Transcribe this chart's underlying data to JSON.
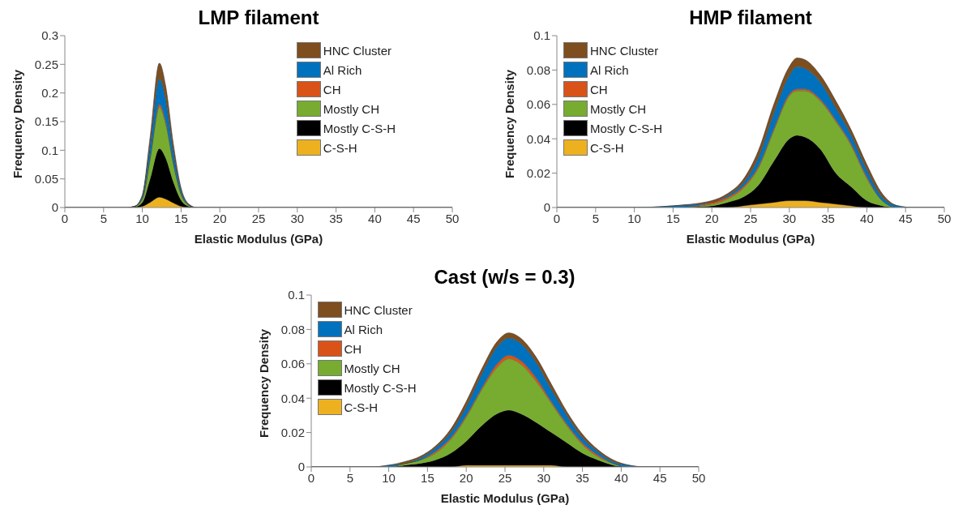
{
  "chart_data": [
    {
      "type": "area",
      "title": "LMP filament",
      "xlabel": "Elastic Modulus (GPa)",
      "ylabel": "Frequency Density",
      "stacked": true,
      "legend": "top right",
      "xlim": [
        0,
        50
      ],
      "xticks": [
        0,
        5,
        10,
        15,
        20,
        25,
        30,
        35,
        40,
        45,
        50
      ],
      "ylim": [
        0,
        0.3
      ],
      "yticks": [
        0,
        0.05,
        0.1,
        0.15,
        0.2,
        0.25,
        0.3
      ],
      "x": [
        0,
        7,
        8,
        9,
        10,
        11,
        12.2,
        13,
        14,
        15,
        16,
        17,
        50
      ],
      "series": [
        {
          "name": "C-S-H",
          "color": "#edb120",
          "values": [
            0,
            0,
            0,
            0,
            0.002,
            0.009,
            0.018,
            0.015,
            0.008,
            0.002,
            0,
            0,
            0
          ]
        },
        {
          "name": "Mostly C-S-H",
          "color": "#000000",
          "values": [
            0,
            0,
            0,
            0.001,
            0.007,
            0.041,
            0.085,
            0.072,
            0.037,
            0.011,
            0.002,
            0,
            0
          ]
        },
        {
          "name": "Mostly CH",
          "color": "#77ac30",
          "values": [
            0,
            0,
            0,
            0.001,
            0.006,
            0.035,
            0.072,
            0.061,
            0.032,
            0.01,
            0.002,
            0,
            0
          ]
        },
        {
          "name": "CH",
          "color": "#d95319",
          "values": [
            0,
            0,
            0,
            0,
            0.001,
            0.002,
            0.005,
            0.004,
            0.002,
            0.001,
            0,
            0,
            0
          ]
        },
        {
          "name": "Al Rich",
          "color": "#0072bd",
          "values": [
            0,
            0,
            0,
            0,
            0.004,
            0.022,
            0.045,
            0.038,
            0.02,
            0.006,
            0.001,
            0,
            0
          ]
        },
        {
          "name": "HNC Cluster",
          "color": "#7e4e1e",
          "values": [
            0,
            0,
            0,
            0,
            0.002,
            0.013,
            0.027,
            0.023,
            0.012,
            0.004,
            0.001,
            0,
            0
          ]
        }
      ]
    },
    {
      "type": "area",
      "title": "HMP filament",
      "xlabel": "Elastic Modulus (GPa)",
      "ylabel": "Frequency Density",
      "stacked": true,
      "legend": "top left",
      "xlim": [
        0,
        50
      ],
      "xticks": [
        0,
        5,
        10,
        15,
        20,
        25,
        30,
        35,
        40,
        45,
        50
      ],
      "ylim": [
        0,
        0.1
      ],
      "yticks": [
        0,
        0.02,
        0.04,
        0.06,
        0.08,
        0.1
      ],
      "x": [
        0,
        10,
        15,
        20,
        22,
        24,
        26,
        28,
        30,
        31,
        32,
        34,
        36,
        38,
        40,
        42,
        44,
        46,
        50
      ],
      "series": [
        {
          "name": "C-S-H",
          "color": "#edb120",
          "values": [
            0,
            0,
            0,
            0,
            0,
            0.001,
            0.002,
            0.003,
            0.004,
            0.004,
            0.004,
            0.003,
            0.002,
            0.001,
            0,
            0,
            0,
            0,
            0
          ]
        },
        {
          "name": "Mostly C-S-H",
          "color": "#000000",
          "values": [
            0,
            0,
            0,
            0.001,
            0.003,
            0.005,
            0.011,
            0.024,
            0.036,
            0.038,
            0.037,
            0.031,
            0.018,
            0.011,
            0.004,
            0.001,
            0,
            0,
            0
          ]
        },
        {
          "name": "Mostly CH",
          "color": "#77ac30",
          "values": [
            0,
            0,
            0,
            0.001,
            0.002,
            0.005,
            0.01,
            0.018,
            0.025,
            0.026,
            0.027,
            0.028,
            0.03,
            0.024,
            0.013,
            0.003,
            0,
            0,
            0
          ]
        },
        {
          "name": "CH",
          "color": "#d95319",
          "values": [
            0,
            0,
            0,
            0.001,
            0.001,
            0.001,
            0.001,
            0.001,
            0.001,
            0.001,
            0.001,
            0.001,
            0.001,
            0.001,
            0.001,
            0,
            0,
            0,
            0
          ]
        },
        {
          "name": "Al Rich",
          "color": "#0072bd",
          "values": [
            0,
            0,
            0.001,
            0,
            0.001,
            0.002,
            0.005,
            0.009,
            0.011,
            0.013,
            0.012,
            0.01,
            0.007,
            0.005,
            0.004,
            0.002,
            0.001,
            0,
            0
          ]
        },
        {
          "name": "HNC Cluster",
          "color": "#7e4e1e",
          "values": [
            0,
            0,
            0,
            0.001,
            0.001,
            0.002,
            0.004,
            0.005,
            0.005,
            0.005,
            0.005,
            0.004,
            0.004,
            0.003,
            0.003,
            0.002,
            0,
            0,
            0
          ]
        }
      ]
    },
    {
      "type": "area",
      "title": "Cast (w/s = 0.3)",
      "xlabel": "Elastic Modulus (GPa)",
      "ylabel": "Frequency Density",
      "stacked": true,
      "legend": "top left",
      "xlim": [
        0,
        50
      ],
      "xticks": [
        0,
        5,
        10,
        15,
        20,
        25,
        30,
        35,
        40,
        45,
        50
      ],
      "ylim": [
        0,
        0.1
      ],
      "yticks": [
        0,
        0.02,
        0.04,
        0.06,
        0.08,
        0.1
      ],
      "x": [
        0,
        8,
        10,
        12,
        14,
        16,
        18,
        20,
        22,
        24,
        25.5,
        27,
        29,
        31,
        33,
        35,
        37,
        39,
        41,
        43,
        50
      ],
      "series": [
        {
          "name": "C-S-H",
          "color": "#edb120",
          "values": [
            0,
            0,
            0,
            0,
            0,
            0,
            0,
            0.001,
            0.001,
            0.001,
            0.001,
            0.001,
            0.001,
            0.001,
            0,
            0,
            0,
            0,
            0,
            0,
            0
          ]
        },
        {
          "name": "Mostly C-S-H",
          "color": "#000000",
          "values": [
            0,
            0,
            0,
            0.001,
            0.002,
            0.004,
            0.008,
            0.014,
            0.023,
            0.03,
            0.032,
            0.03,
            0.025,
            0.019,
            0.014,
            0.008,
            0.004,
            0.001,
            0,
            0,
            0
          ]
        },
        {
          "name": "Mostly CH",
          "color": "#77ac30",
          "values": [
            0,
            0,
            0,
            0.001,
            0.002,
            0.004,
            0.008,
            0.014,
            0.021,
            0.027,
            0.03,
            0.029,
            0.024,
            0.017,
            0.01,
            0.005,
            0.002,
            0.001,
            0,
            0,
            0
          ]
        },
        {
          "name": "CH",
          "color": "#d95319",
          "values": [
            0,
            0,
            0,
            0,
            0,
            0.001,
            0.001,
            0.001,
            0.001,
            0.002,
            0.002,
            0.002,
            0.002,
            0.001,
            0.001,
            0.001,
            0.001,
            0,
            0,
            0,
            0
          ]
        },
        {
          "name": "Al Rich",
          "color": "#0072bd",
          "values": [
            0,
            0,
            0.001,
            0,
            0.001,
            0.002,
            0.003,
            0.005,
            0.008,
            0.01,
            0.01,
            0.01,
            0.009,
            0.007,
            0.005,
            0.003,
            0.002,
            0.001,
            0.001,
            0,
            0
          ]
        },
        {
          "name": "HNC Cluster",
          "color": "#7e4e1e",
          "values": [
            0,
            0,
            0,
            0.001,
            0.001,
            0.001,
            0.002,
            0.003,
            0.003,
            0.003,
            0.003,
            0.003,
            0.003,
            0.003,
            0.002,
            0.002,
            0.001,
            0.001,
            0,
            0,
            0
          ]
        }
      ]
    }
  ]
}
